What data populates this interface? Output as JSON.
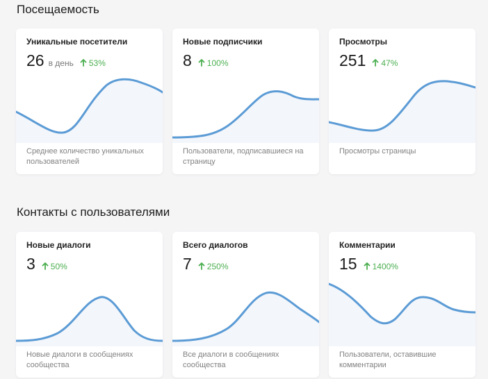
{
  "sections": [
    {
      "title": "Посещаемость",
      "cards": [
        {
          "title": "Уникальные посетители",
          "value": "26",
          "unit": "в день",
          "change": "53%",
          "trend": "up",
          "description": "Среднее количество уникальных пользователей"
        },
        {
          "title": "Новые подписчики",
          "value": "8",
          "unit": "",
          "change": "100%",
          "trend": "up",
          "description": "Пользователи, подписавшиеся на страницу"
        },
        {
          "title": "Просмотры",
          "value": "251",
          "unit": "",
          "change": "47%",
          "trend": "up",
          "description": "Просмотры страницы"
        }
      ]
    },
    {
      "title": "Контакты с пользователями",
      "cards": [
        {
          "title": "Новые диалоги",
          "value": "3",
          "unit": "",
          "change": "50%",
          "trend": "up",
          "description": "Новые диалоги в сообщениях сообщества"
        },
        {
          "title": "Всего диалогов",
          "value": "7",
          "unit": "",
          "change": "250%",
          "trend": "up",
          "description": "Все диалоги в сообщениях сообщества"
        },
        {
          "title": "Комментарии",
          "value": "15",
          "unit": "",
          "change": "1400%",
          "trend": "up",
          "description": "Пользователи, оставившие комментарии"
        }
      ]
    }
  ],
  "colors": {
    "accent_line": "#5b9bd5",
    "area_fill": "#f3f6fb",
    "trend_up": "#4caf50",
    "card_bg": "#ffffff",
    "page_bg": "#f5f5f6"
  },
  "icons": {
    "trend_up": "arrow-up-icon"
  }
}
